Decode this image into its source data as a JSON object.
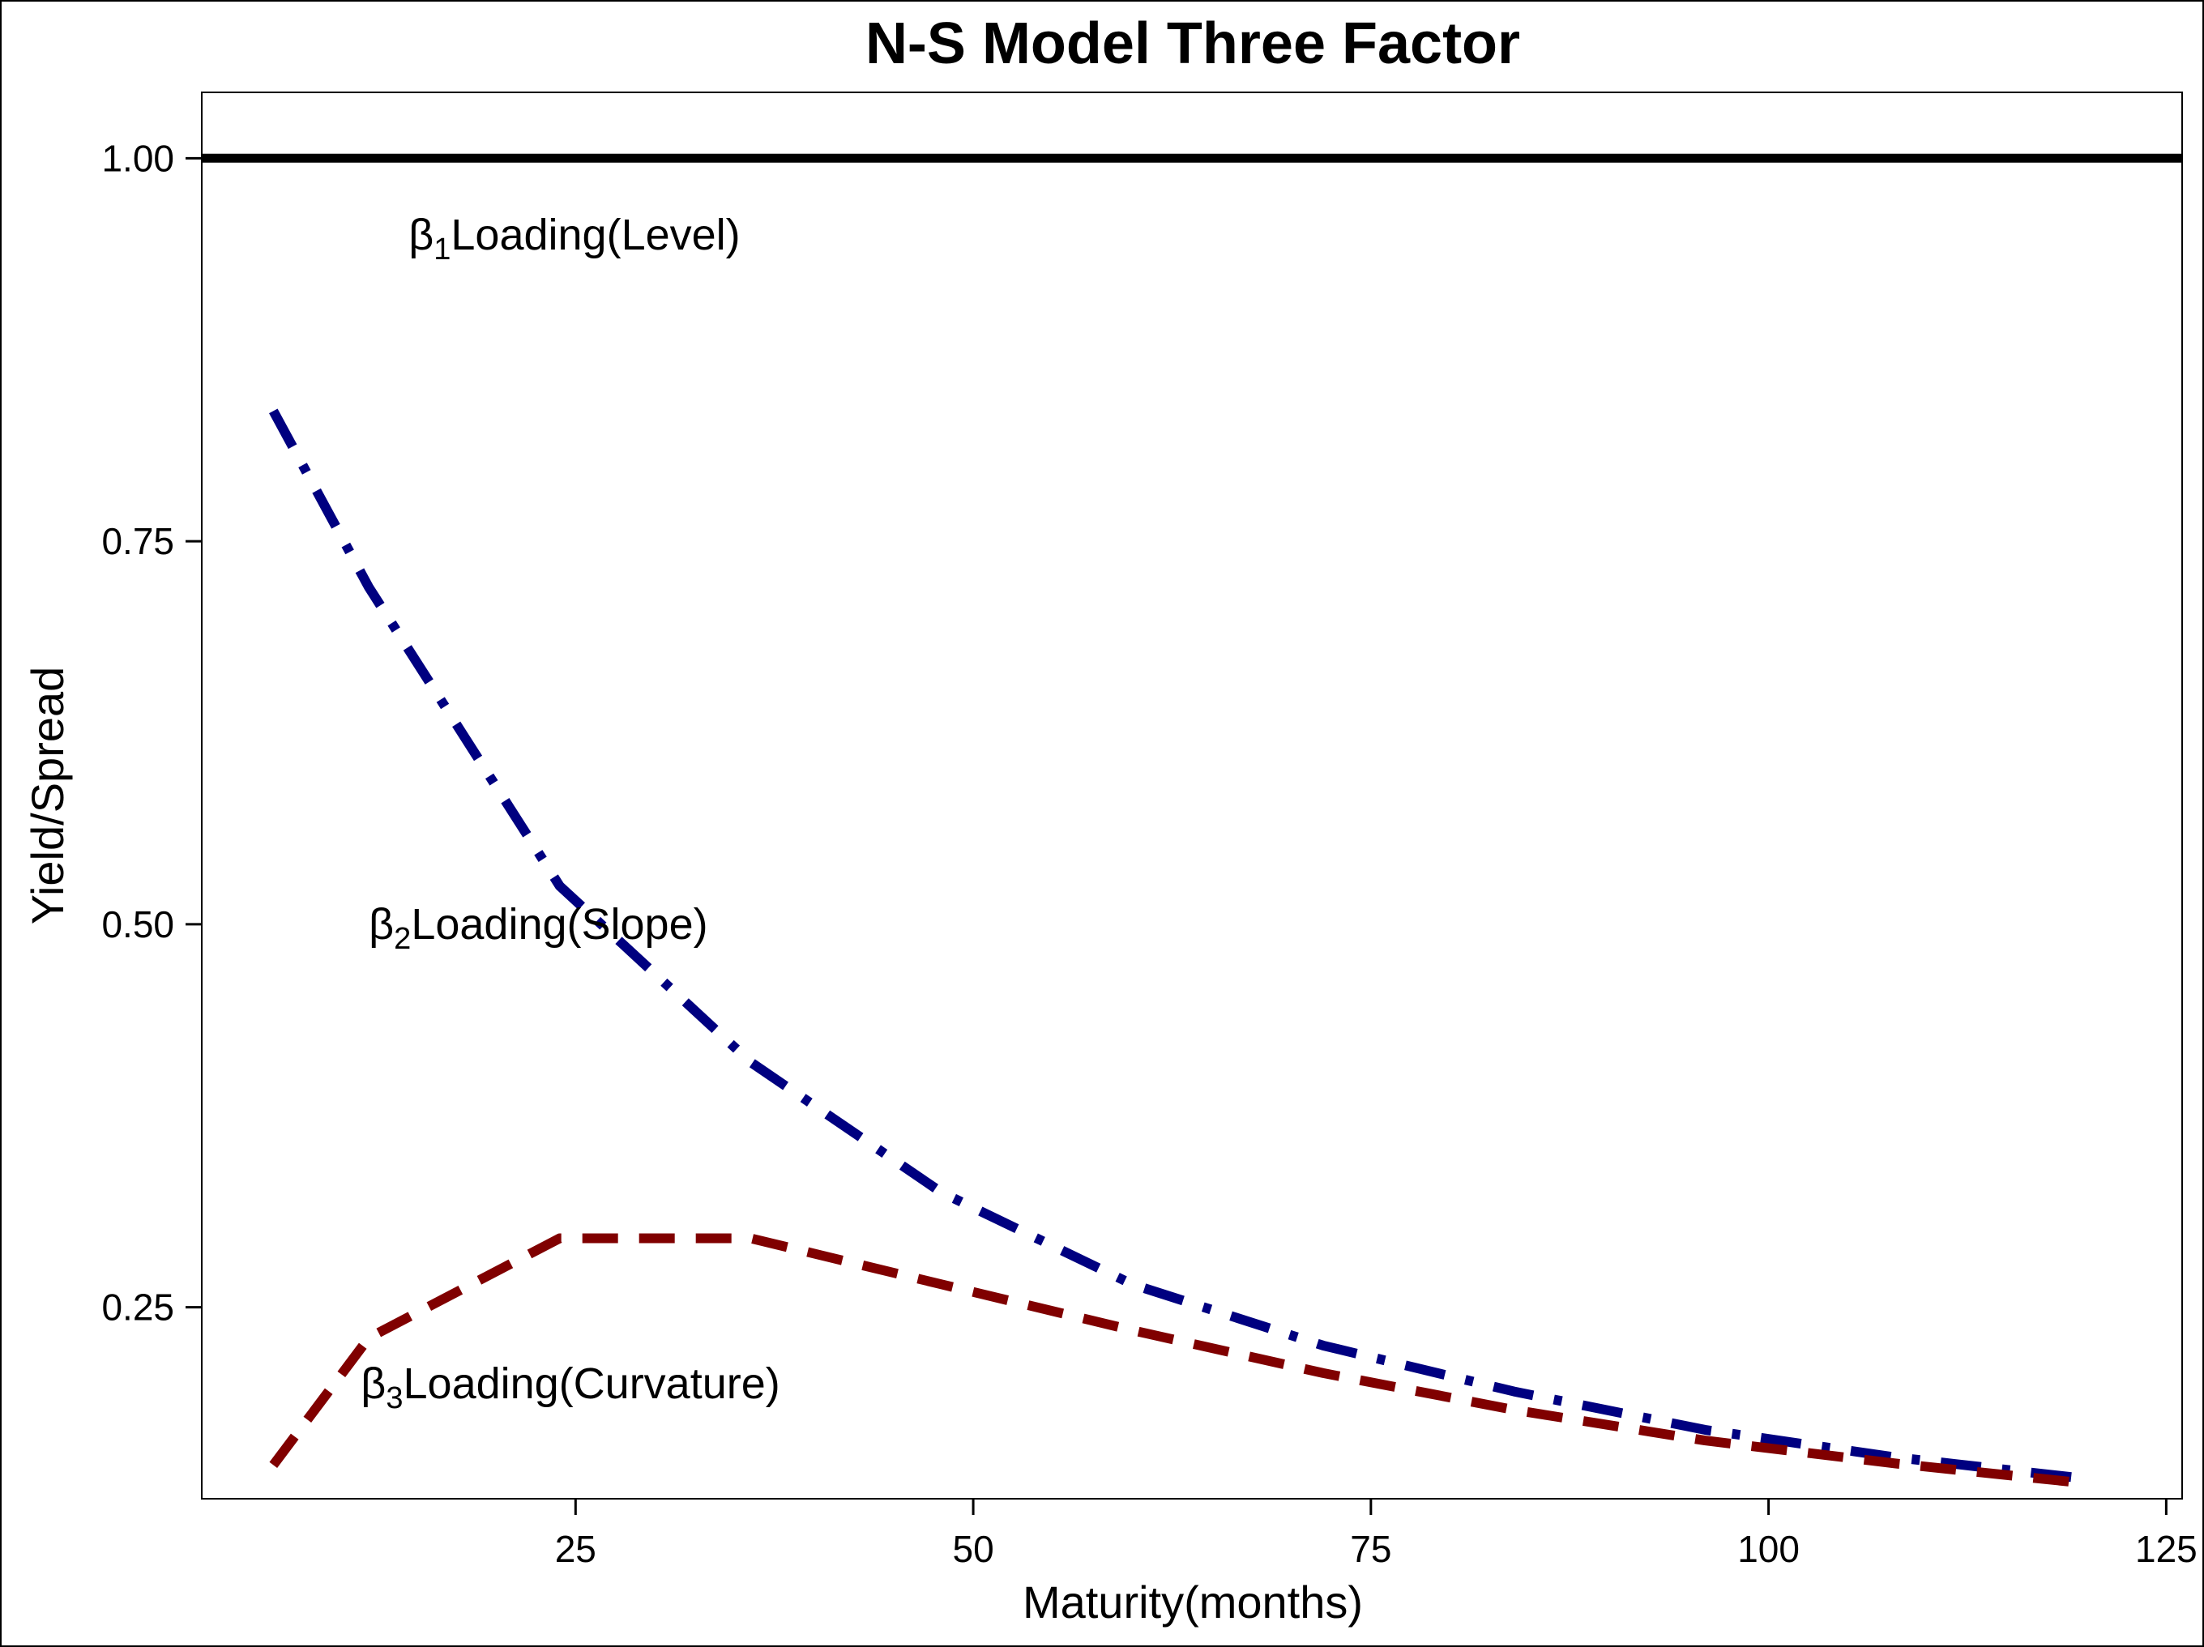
{
  "chart_data": {
    "type": "line",
    "title": "N-S Model Three Factor",
    "xlabel": "Maturity(months)",
    "ylabel": "Yield/Spread",
    "xlim": [
      1.5,
      126
    ],
    "ylim": [
      0.125,
      1.043
    ],
    "xticks": [
      25,
      50,
      75,
      100,
      125
    ],
    "xtick_labels": [
      "25",
      "50",
      "75",
      "100",
      "125"
    ],
    "yticks": [
      0.25,
      0.5,
      0.75,
      1.0
    ],
    "ytick_labels": [
      "0.25",
      "0.50",
      "0.75",
      "1.00"
    ],
    "grid": false,
    "legend": "none",
    "series": [
      {
        "name": "Level",
        "color": "#000000",
        "style": "solid",
        "x": [
          6,
          120
        ],
        "y": [
          1.0,
          1.0
        ]
      },
      {
        "name": "Slope",
        "color": "#000080",
        "style": "dashdot",
        "x": [
          6,
          12,
          24,
          36,
          48,
          60,
          72,
          84,
          96,
          108,
          120
        ],
        "y": [
          0.835,
          0.72,
          0.525,
          0.41,
          0.325,
          0.265,
          0.225,
          0.195,
          0.17,
          0.152,
          0.138
        ]
      },
      {
        "name": "Curvature",
        "color": "#800000",
        "style": "dashed",
        "x": [
          6,
          12,
          24,
          36,
          48,
          60,
          72,
          84,
          96,
          108,
          120
        ],
        "y": [
          0.147,
          0.23,
          0.295,
          0.295,
          0.265,
          0.235,
          0.207,
          0.183,
          0.163,
          0.148,
          0.135
        ]
      }
    ],
    "annotations": [
      {
        "prefix": "β",
        "sub": "1",
        "text": "Loading(Level)",
        "x": 14.5,
        "y": 0.95
      },
      {
        "prefix": "β",
        "sub": "2",
        "text": "Loading(Slope)",
        "x": 12,
        "y": 0.5
      },
      {
        "prefix": "β",
        "sub": "3",
        "text": "Loading(Curvature)",
        "x": 11.5,
        "y": 0.2
      }
    ]
  }
}
